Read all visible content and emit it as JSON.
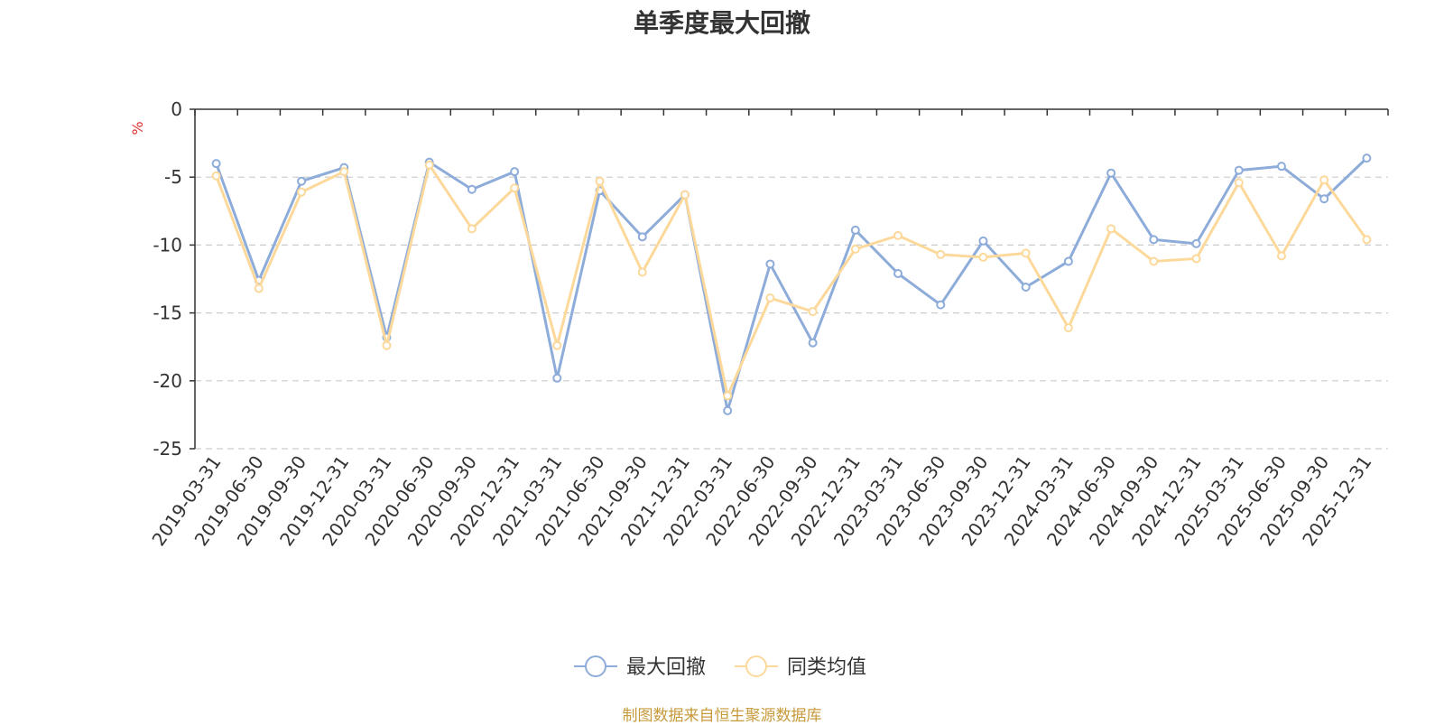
{
  "chart_data": {
    "type": "line",
    "title": "单季度最大回撤",
    "ylabel": "%",
    "ylim": [
      -25,
      0
    ],
    "yticks": [
      0,
      -5,
      -10,
      -15,
      -20,
      -25
    ],
    "grid": true,
    "legend_position": "bottom-center",
    "categories": [
      "2019-03-31",
      "2019-06-30",
      "2019-09-30",
      "2019-12-31",
      "2020-03-31",
      "2020-06-30",
      "2020-09-30",
      "2020-12-31",
      "2021-03-31",
      "2021-06-30",
      "2021-09-30",
      "2021-12-31",
      "2022-03-31",
      "2022-06-30",
      "2022-09-30",
      "2022-12-31",
      "2023-03-31",
      "2023-06-30",
      "2023-09-30",
      "2023-12-31",
      "2024-03-31",
      "2024-06-30",
      "2024-09-30",
      "2024-12-31",
      "2025-03-31",
      "2025-06-30",
      "2025-09-30",
      "2025-12-31"
    ],
    "series": [
      {
        "name": "最大回撤",
        "color": "#8eacd9",
        "values": [
          -4.0,
          -12.6,
          -5.3,
          -4.3,
          -16.8,
          -3.9,
          -5.9,
          -4.6,
          -19.8,
          -6.0,
          -9.4,
          -6.3,
          -22.2,
          -11.4,
          -17.2,
          -8.9,
          -12.1,
          -14.4,
          -9.7,
          -13.1,
          -11.2,
          -4.7,
          -9.6,
          -9.9,
          -4.5,
          -4.2,
          -6.6,
          -3.6
        ]
      },
      {
        "name": "同类均值",
        "color": "#fcd99b",
        "values": [
          -4.9,
          -13.2,
          -6.1,
          -4.6,
          -17.4,
          -4.1,
          -8.8,
          -5.8,
          -17.4,
          -5.3,
          -12.0,
          -6.3,
          -21.1,
          -13.9,
          -14.9,
          -10.3,
          -9.3,
          -10.7,
          -10.9,
          -10.6,
          -16.1,
          -8.8,
          -11.2,
          -11.0,
          -5.4,
          -10.8,
          -5.2,
          -9.6
        ]
      }
    ]
  },
  "source_text": "制图数据来自恒生聚源数据库",
  "source_color": "#c79a3c",
  "ylabel_color": "#e03131"
}
